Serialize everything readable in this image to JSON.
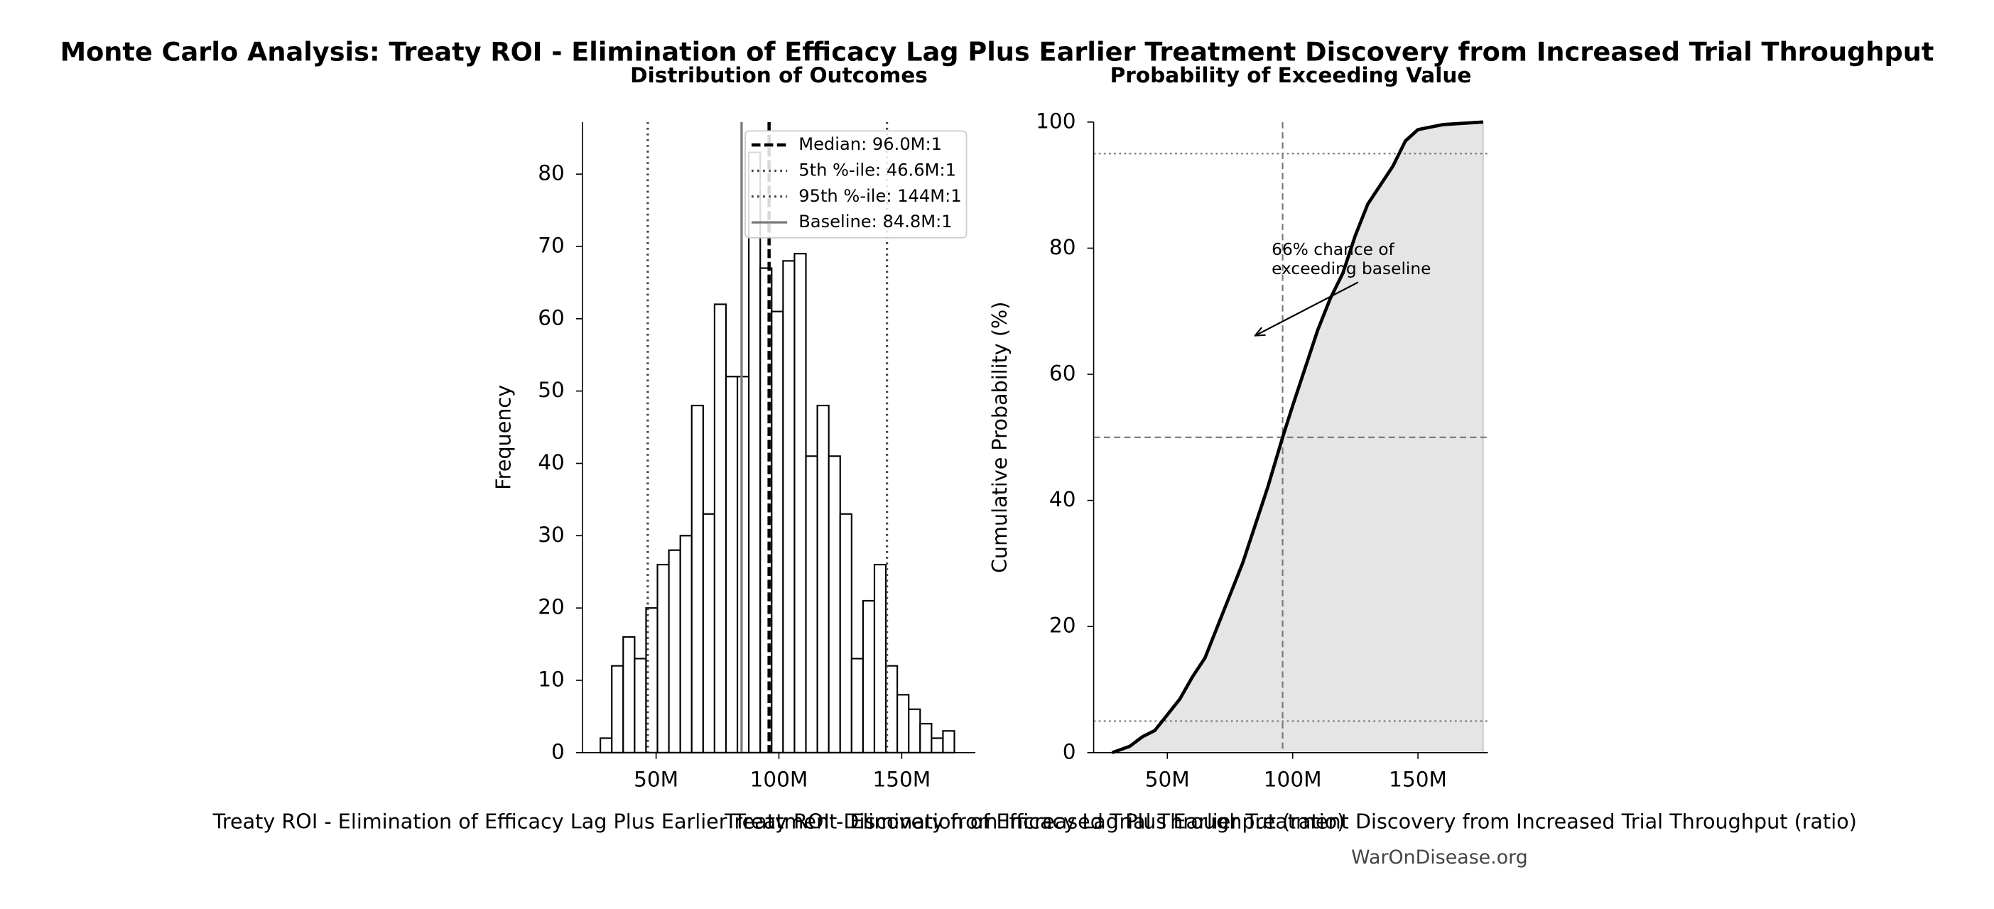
{
  "title": "Monte Carlo Analysis: Treaty ROI - Elimination of Efficacy Lag Plus Earlier Treatment Discovery from Increased Trial Throughput",
  "watermark": "WarOnDisease.org",
  "chart_data": [
    {
      "type": "histogram",
      "title": "Distribution of Outcomes",
      "x_label": "Treaty ROI - Elimination of Efficacy Lag Plus Earlier Treatment Discovery from Increased Trial Throughput (ratio)",
      "y_label": "Frequency",
      "bins": [
        27300000,
        31950000,
        36600000,
        41250000,
        45900000,
        50550000,
        55200000,
        59850000,
        64500000,
        69150000,
        73800000,
        78450000,
        83100000,
        87750000,
        92400000,
        97050000,
        101700000,
        106350000,
        111000000,
        115650000,
        120300000,
        124950000,
        129600000,
        134250000,
        138900000,
        143550000,
        148200000,
        152850000,
        157500000,
        162150000,
        166800000,
        171450000
      ],
      "counts": [
        2,
        12,
        16,
        13,
        20,
        26,
        28,
        30,
        48,
        33,
        62,
        52,
        52,
        83,
        67,
        61,
        68,
        69,
        41,
        48,
        41,
        33,
        13,
        21,
        26,
        12,
        8,
        6,
        4,
        2,
        3
      ],
      "color": "#ffffff",
      "edge_color": "#000000",
      "xlim": [
        20000000,
        180000000
      ],
      "ylim": [
        0,
        87.2
      ],
      "xticks": [
        {
          "value": 50000000,
          "label": "50M"
        },
        {
          "value": 100000000,
          "label": "100M"
        },
        {
          "value": 150000000,
          "label": "150M"
        }
      ],
      "yticks": [
        0,
        10,
        20,
        30,
        40,
        50,
        60,
        70,
        80
      ],
      "legend": "upper right",
      "vlines": [
        {
          "label": "Median: 96.0M:1",
          "value": 96000000,
          "style": "dashed",
          "color": "#000000"
        },
        {
          "label": "5th %-ile: 46.6M:1",
          "value": 46600000,
          "style": "dotted",
          "color": "#444444"
        },
        {
          "label": "95th %-ile: 144M:1",
          "value": 144000000,
          "style": "dotted",
          "color": "#444444"
        },
        {
          "label": "Baseline: 84.8M:1",
          "value": 84800000,
          "style": "solid",
          "color": "#777777"
        }
      ]
    },
    {
      "type": "line",
      "title": "Probability of Exceeding Value",
      "x_label": "Treaty ROI - Elimination of Efficacy Lag Plus Earlier Treatment Discovery from Increased Trial Throughput (ratio)",
      "y_label": "Cumulative Probability (%)",
      "x": [
        28000000,
        35000000,
        40000000,
        45000000,
        50000000,
        55000000,
        60000000,
        65000000,
        70000000,
        75000000,
        80000000,
        85000000,
        90000000,
        96000000,
        100000000,
        105000000,
        110000000,
        115000000,
        120000000,
        125000000,
        130000000,
        135000000,
        140000000,
        145000000,
        150000000,
        160000000,
        176000000
      ],
      "values": [
        0,
        1,
        2.5,
        3.5,
        6,
        8.5,
        12,
        15,
        20,
        25,
        30,
        36,
        42,
        50,
        55,
        61,
        67,
        72,
        76,
        82,
        87,
        90,
        93,
        97,
        98.8,
        99.6,
        100
      ],
      "color": "#000000",
      "fill_color": "#e5e5e5",
      "xlim": [
        20600000,
        177900000
      ],
      "ylim": [
        0,
        100
      ],
      "xticks": [
        {
          "value": 50000000,
          "label": "50M"
        },
        {
          "value": 100000000,
          "label": "100M"
        },
        {
          "value": 150000000,
          "label": "150M"
        }
      ],
      "yticks": [
        0,
        20,
        40,
        60,
        80,
        100
      ],
      "hlines": [
        5,
        50,
        95
      ],
      "vlines": [
        96000000
      ],
      "annotation": [
        "66% chance of",
        "exceeding baseline"
      ]
    }
  ]
}
